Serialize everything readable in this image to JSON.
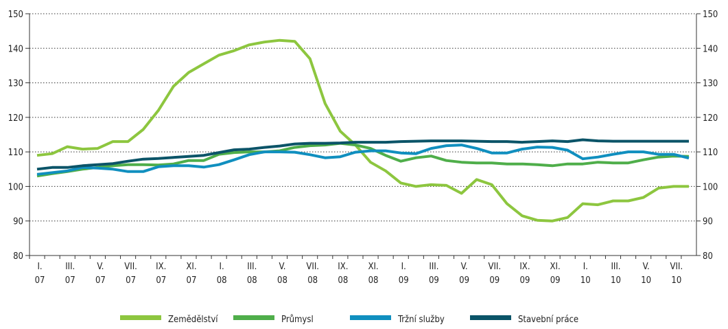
{
  "chart_data": {
    "type": "line",
    "categories": [
      "I.\n07",
      null,
      "III.\n07",
      null,
      "V.\n07",
      null,
      "VII.\n07",
      null,
      "IX.\n07",
      null,
      "XI.\n07",
      null,
      "I.\n08",
      null,
      "III.\n08",
      null,
      "V.\n08",
      null,
      "VII.\n08",
      null,
      "IX.\n08",
      null,
      "XI.\n08",
      null,
      "I.\n09",
      null,
      "III.\n09",
      null,
      "V.\n09",
      null,
      "VII.\n09",
      null,
      "IX.\n09",
      null,
      "XI.\n09",
      null,
      "I.\n10",
      null,
      "III.\n10",
      null,
      "V.\n10",
      null,
      "VII.\n10",
      null
    ],
    "series": [
      {
        "name": "Zemědělství",
        "color": "#8dc63f",
        "values": [
          109,
          109.5,
          111.5,
          110.8,
          111,
          113,
          113,
          116.5,
          122,
          129,
          133,
          135.5,
          138,
          139.3,
          141,
          141.8,
          142.3,
          142,
          137,
          124,
          116,
          112,
          107,
          104.5,
          101,
          100,
          100.5,
          100.3,
          98,
          102,
          100.5,
          95,
          91.5,
          90.2,
          90,
          91,
          95,
          94.7,
          95.8,
          95.8,
          96.8,
          99.5,
          100,
          100
        ]
      },
      {
        "name": "Průmysl",
        "color": "#4fae4a",
        "values": [
          103,
          103.7,
          104.3,
          105,
          105.5,
          106,
          106.3,
          106.3,
          106.2,
          106.5,
          107.5,
          107.5,
          109.3,
          109.8,
          110,
          110,
          110.3,
          111.3,
          111.8,
          112,
          112.5,
          112,
          111,
          109,
          107.3,
          108.3,
          108.8,
          107.5,
          107,
          106.8,
          106.8,
          106.5,
          106.5,
          106.3,
          106,
          106.5,
          106.5,
          107,
          106.8,
          106.8,
          107.7,
          108.5,
          108.8,
          108.7
        ]
      },
      {
        "name": "Tržní služby",
        "color": "#108fbf",
        "values": [
          103.5,
          104,
          104.5,
          105.5,
          105.3,
          105,
          104.3,
          104.3,
          105.7,
          106,
          106,
          105.6,
          106.3,
          107.7,
          109.2,
          110,
          110,
          109.9,
          109.2,
          108.3,
          108.6,
          109.9,
          110.3,
          110.3,
          109.7,
          109.5,
          111,
          111.8,
          112,
          111,
          109.7,
          109.7,
          110.8,
          111.4,
          111.3,
          110.5,
          108,
          108.5,
          109.3,
          110,
          110,
          109.3,
          109.3,
          108.2
        ]
      },
      {
        "name": "Stavební práce",
        "color": "#0b5468",
        "values": [
          105,
          105.5,
          105.5,
          106,
          106.3,
          106.6,
          107.3,
          107.9,
          108.1,
          108.4,
          108.7,
          109,
          109.8,
          110.6,
          110.8,
          111.3,
          111.7,
          112.3,
          112.5,
          112.5,
          112.6,
          112.8,
          112.8,
          112.8,
          113,
          113.1,
          113.2,
          113.2,
          113.2,
          113.1,
          113,
          113,
          112.8,
          113,
          113.2,
          113,
          113.5,
          113.2,
          113.1,
          113.1,
          113.1,
          113.1,
          113.1,
          113.1
        ]
      }
    ],
    "ylim": [
      80,
      150
    ],
    "yticks": [
      80,
      90,
      100,
      110,
      120,
      130,
      140,
      150
    ],
    "grid": true
  }
}
